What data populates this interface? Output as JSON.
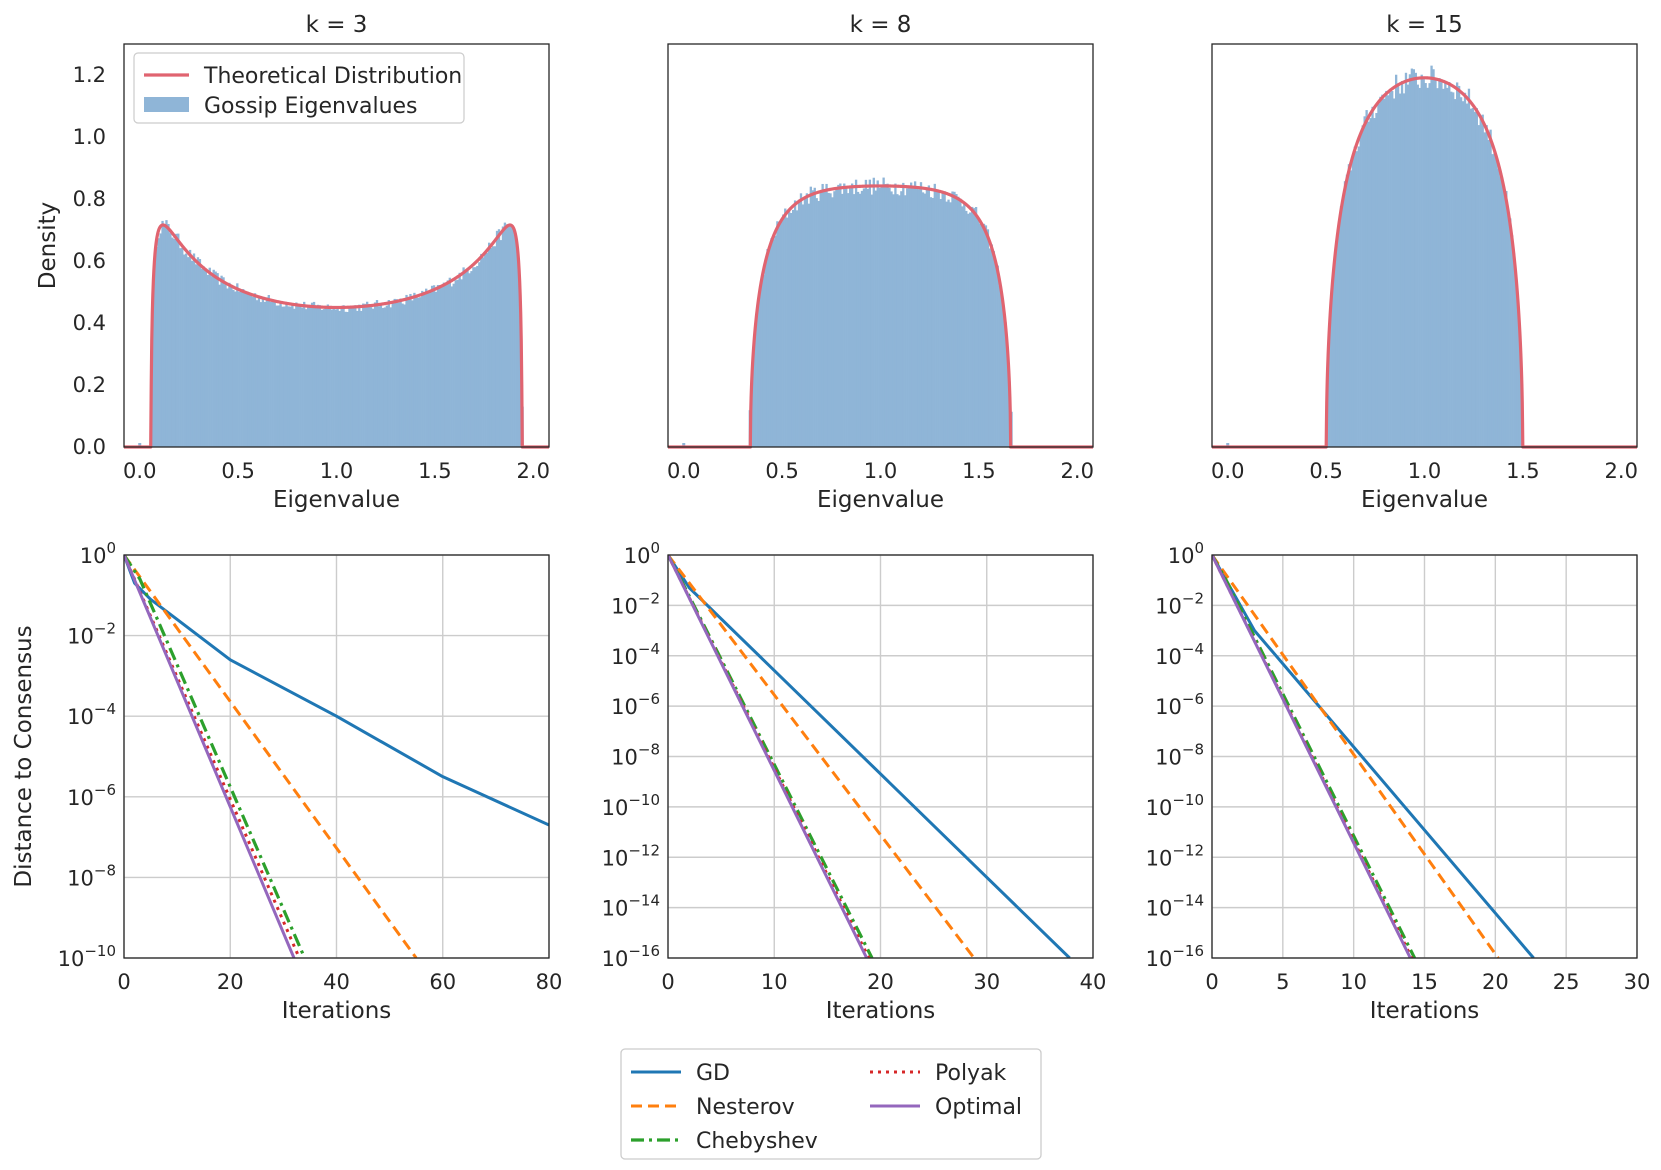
{
  "colors": {
    "gd": "#1f77b4",
    "nesterov": "#ff7f0e",
    "chebyshev": "#2ca02c",
    "polyak": "#d62728",
    "optimal": "#9467bd",
    "theory": "#e06470",
    "hist": "#8fb5d7",
    "grid": "#cccccc",
    "spine": "#262626"
  },
  "chart_data": [
    {
      "type": "histogram",
      "title": "k = 3",
      "k": 3,
      "xlabel": "Eigenvalue",
      "ylabel": "Density",
      "xlim": [
        -0.08,
        2.08
      ],
      "ylim": [
        0,
        1.3
      ],
      "xticks": [
        0.0,
        0.5,
        1.0,
        1.5,
        2.0
      ],
      "xtick_labels": [
        "0.0",
        "0.5",
        "1.0",
        "1.5",
        "2.0"
      ],
      "yticks": [
        0.0,
        0.2,
        0.4,
        0.6,
        0.8,
        1.0,
        1.2
      ],
      "ytick_labels": [
        "0.0",
        "0.2",
        "0.4",
        "0.6",
        "0.8",
        "1.0",
        "1.2"
      ],
      "support": [
        0.0557,
        1.9443
      ],
      "outlier": 0.0,
      "peak_approx": 0.72,
      "center_approx": 0.45,
      "legend": {
        "entries": [
          "Theoretical Distribution",
          "Gossip Eigenvalues"
        ],
        "position": "upper-left"
      }
    },
    {
      "type": "histogram",
      "title": "k = 8",
      "k": 8,
      "xlabel": "Eigenvalue",
      "xlim": [
        -0.08,
        2.08
      ],
      "ylim": [
        0,
        1.3
      ],
      "xticks": [
        0.0,
        0.5,
        1.0,
        1.5,
        2.0
      ],
      "xtick_labels": [
        "0.0",
        "0.5",
        "1.0",
        "1.5",
        "2.0"
      ],
      "support": [
        0.3386,
        1.6614
      ],
      "outlier": 0.0,
      "center_approx": 0.84
    },
    {
      "type": "histogram",
      "title": "k = 15",
      "k": 15,
      "xlabel": "Eigenvalue",
      "xlim": [
        -0.08,
        2.08
      ],
      "ylim": [
        0,
        1.3
      ],
      "xticks": [
        0.0,
        0.5,
        1.0,
        1.5,
        2.0
      ],
      "xtick_labels": [
        "0.0",
        "0.5",
        "1.0",
        "1.5",
        "2.0"
      ],
      "support": [
        0.4989,
        1.5011
      ],
      "outlier": 0.0,
      "center_approx": 1.2
    },
    {
      "type": "line",
      "yscale": "log",
      "xlabel": "Iterations",
      "ylabel": "Distance to Consensus",
      "xlim": [
        0,
        80
      ],
      "ylim_exp": [
        -10,
        0
      ],
      "xticks": [
        0,
        20,
        40,
        60,
        80
      ],
      "xtick_labels": [
        "0",
        "20",
        "40",
        "60",
        "80"
      ],
      "ytick_exps": [
        0,
        -2,
        -4,
        -6,
        -8,
        -10
      ],
      "ytick_exp_labels": [
        "0",
        "−2",
        "−4",
        "−6",
        "−8",
        "−10"
      ],
      "ytick_base": "10",
      "series": [
        {
          "name": "GD",
          "x": [
            0,
            2,
            5,
            10,
            20,
            40,
            60,
            80
          ],
          "log10_y": [
            0,
            -0.7,
            -1.1,
            -1.6,
            -2.6,
            -4.0,
            -5.5,
            -6.7
          ]
        },
        {
          "name": "Nesterov",
          "x": [
            0,
            55
          ],
          "log10_y": [
            0,
            -10
          ]
        },
        {
          "name": "Chebyshev",
          "x": [
            0,
            3,
            34
          ],
          "log10_y": [
            0,
            -0.6,
            -10
          ]
        },
        {
          "name": "Polyak",
          "x": [
            0,
            33
          ],
          "log10_y": [
            0,
            -10
          ]
        },
        {
          "name": "Optimal",
          "x": [
            0,
            32
          ],
          "log10_y": [
            0,
            -10
          ]
        }
      ]
    },
    {
      "type": "line",
      "yscale": "log",
      "xlabel": "Iterations",
      "xlim": [
        0,
        40
      ],
      "ylim_exp": [
        -16,
        0
      ],
      "xticks": [
        0,
        10,
        20,
        30,
        40
      ],
      "xtick_labels": [
        "0",
        "10",
        "20",
        "30",
        "40"
      ],
      "ytick_exps": [
        0,
        -2,
        -4,
        -6,
        -8,
        -10,
        -12,
        -14,
        -16
      ],
      "ytick_exp_labels": [
        "0",
        "−2",
        "−4",
        "−6",
        "−8",
        "−10",
        "−12",
        "−14",
        "−16"
      ],
      "ytick_base": "10",
      "series": [
        {
          "name": "GD",
          "x": [
            0,
            2,
            37.8
          ],
          "log10_y": [
            0,
            -1.3,
            -16
          ]
        },
        {
          "name": "Nesterov",
          "x": [
            0,
            28.8
          ],
          "log10_y": [
            0,
            -16
          ]
        },
        {
          "name": "Chebyshev",
          "x": [
            0,
            1,
            19.2
          ],
          "log10_y": [
            0,
            -0.8,
            -16
          ]
        },
        {
          "name": "Polyak",
          "x": [
            0,
            18.9
          ],
          "log10_y": [
            0,
            -16
          ]
        },
        {
          "name": "Optimal",
          "x": [
            0,
            18.7
          ],
          "log10_y": [
            0,
            -16
          ]
        }
      ]
    },
    {
      "type": "line",
      "yscale": "log",
      "xlabel": "Iterations",
      "xlim": [
        0,
        30
      ],
      "ylim_exp": [
        -16,
        0
      ],
      "xticks": [
        0,
        5,
        10,
        15,
        20,
        25,
        30
      ],
      "xtick_labels": [
        "0",
        "5",
        "10",
        "15",
        "20",
        "25",
        "30"
      ],
      "ytick_exps": [
        0,
        -2,
        -4,
        -6,
        -8,
        -10,
        -12,
        -14,
        -16
      ],
      "ytick_exp_labels": [
        "0",
        "−2",
        "−4",
        "−6",
        "−8",
        "−10",
        "−12",
        "−14",
        "−16"
      ],
      "ytick_base": "10",
      "series": [
        {
          "name": "GD",
          "x": [
            0,
            3,
            22.7
          ],
          "log10_y": [
            0,
            -3.0,
            -16
          ]
        },
        {
          "name": "Nesterov",
          "x": [
            0,
            20.2
          ],
          "log10_y": [
            0,
            -16
          ]
        },
        {
          "name": "Chebyshev",
          "x": [
            0,
            1,
            14.3
          ],
          "log10_y": [
            0,
            -1.0,
            -16
          ]
        },
        {
          "name": "Polyak",
          "x": [
            0,
            14.1
          ],
          "log10_y": [
            0,
            -16
          ]
        },
        {
          "name": "Optimal",
          "x": [
            0,
            14.0
          ],
          "log10_y": [
            0,
            -16
          ]
        }
      ]
    }
  ],
  "legend_bottom": {
    "entries": [
      {
        "name": "GD",
        "label": "GD",
        "style": "solid"
      },
      {
        "name": "Nesterov",
        "label": "Nesterov",
        "style": "dashed"
      },
      {
        "name": "Chebyshev",
        "label": "Chebyshev",
        "style": "dashdot"
      },
      {
        "name": "Polyak",
        "label": "Polyak",
        "style": "dotted"
      },
      {
        "name": "Optimal",
        "label": "Optimal",
        "style": "solid"
      }
    ]
  }
}
